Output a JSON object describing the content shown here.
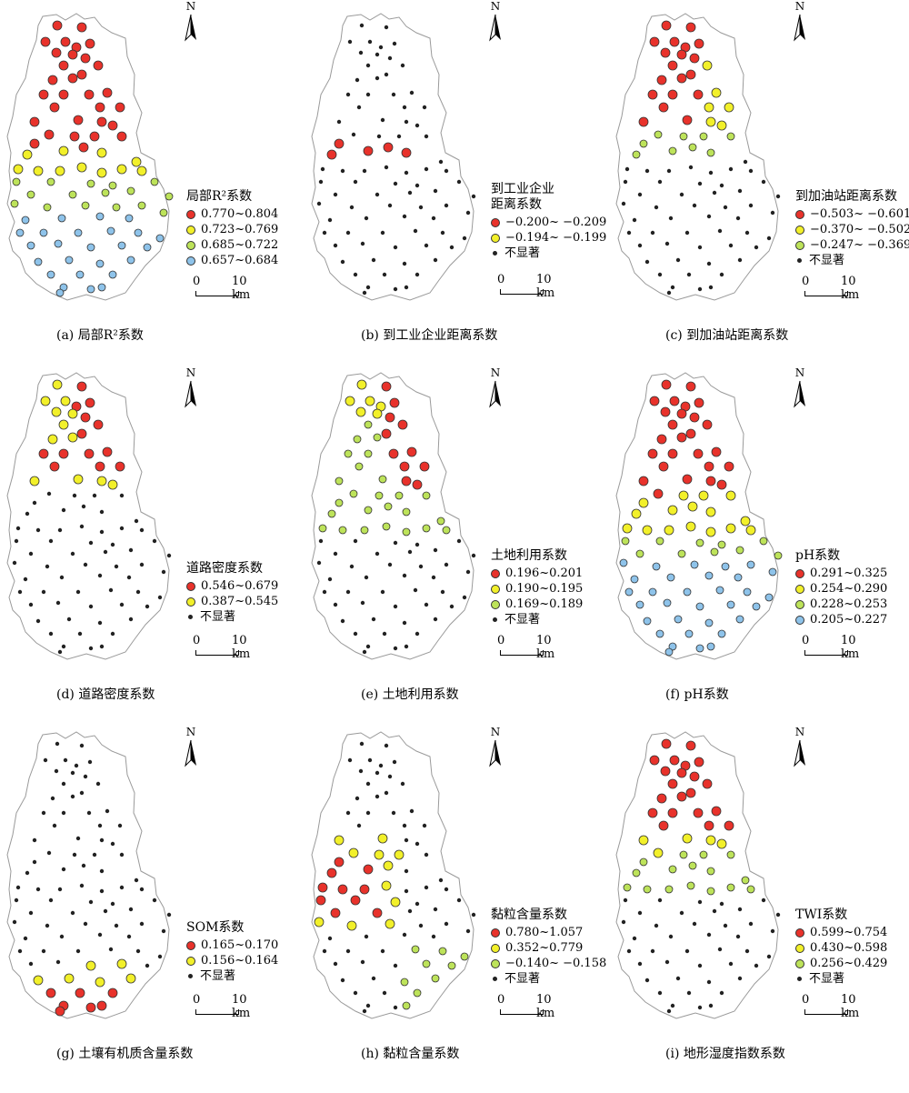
{
  "colors": {
    "red": "#e8322b",
    "yellow": "#f2f02a",
    "green": "#bde35a",
    "blue": "#8ec3ea",
    "black": "#222222",
    "outline": "#9a9a9a"
  },
  "scale": {
    "zero": "0",
    "label": "10 km"
  },
  "north_label": "N",
  "panels": [
    {
      "id": "a",
      "caption": "(a) 局部R²系数",
      "legend_title": "局部R²系数",
      "classes": [
        {
          "label": "0.770~0.804",
          "color": "red"
        },
        {
          "label": "0.723~0.769",
          "color": "yellow"
        },
        {
          "label": "0.685~0.722",
          "color": "green"
        },
        {
          "label": "0.657~0.684",
          "color": "blue"
        }
      ]
    },
    {
      "id": "b",
      "caption": "(b) 到工业企业距离系数",
      "legend_title": "到工业企业\n距离系数",
      "classes": [
        {
          "label": "−0.200~ −0.209",
          "color": "red"
        },
        {
          "label": "−0.194~ −0.199",
          "color": "yellow"
        },
        {
          "label": "不显著",
          "color": "black"
        }
      ]
    },
    {
      "id": "c",
      "caption": "(c) 到加油站距离系数",
      "legend_title": "到加油站距离系数",
      "classes": [
        {
          "label": "−0.503~ −0.601",
          "color": "red"
        },
        {
          "label": "−0.370~ −0.502",
          "color": "yellow"
        },
        {
          "label": "−0.247~ −0.369",
          "color": "green"
        },
        {
          "label": "不显著",
          "color": "black"
        }
      ]
    },
    {
      "id": "d",
      "caption": "(d) 道路密度系数",
      "legend_title": "道路密度系数",
      "classes": [
        {
          "label": "0.546~0.679",
          "color": "red"
        },
        {
          "label": "0.387~0.545",
          "color": "yellow"
        },
        {
          "label": "不显著",
          "color": "black"
        }
      ]
    },
    {
      "id": "e",
      "caption": "(e) 土地利用系数",
      "legend_title": "土地利用系数",
      "classes": [
        {
          "label": "0.196~0.201",
          "color": "red"
        },
        {
          "label": "0.190~0.195",
          "color": "yellow"
        },
        {
          "label": "0.169~0.189",
          "color": "green"
        },
        {
          "label": "不显著",
          "color": "black"
        }
      ]
    },
    {
      "id": "f",
      "caption": "(f) pH系数",
      "legend_title": "pH系数",
      "classes": [
        {
          "label": "0.291~0.325",
          "color": "red"
        },
        {
          "label": "0.254~0.290",
          "color": "yellow"
        },
        {
          "label": "0.228~0.253",
          "color": "green"
        },
        {
          "label": "0.205~0.227",
          "color": "blue"
        }
      ]
    },
    {
      "id": "g",
      "caption": "(g) 土壤有机质含量系数",
      "legend_title": "SOM系数",
      "classes": [
        {
          "label": "0.165~0.170",
          "color": "red"
        },
        {
          "label": "0.156~0.164",
          "color": "yellow"
        },
        {
          "label": "不显著",
          "color": "black"
        }
      ]
    },
    {
      "id": "h",
      "caption": "(h) 黏粒含量系数",
      "legend_title": "黏粒含量系数",
      "classes": [
        {
          "label": "0.780~1.057",
          "color": "red"
        },
        {
          "label": "0.352~0.779",
          "color": "yellow"
        },
        {
          "label": "−0.140~ −0.158",
          "color": "green"
        },
        {
          "label": "不显著",
          "color": "black"
        }
      ]
    },
    {
      "id": "i",
      "caption": "(i) 地形湿度指数系数",
      "legend_title": "TWI系数",
      "classes": [
        {
          "label": "0.599~0.754",
          "color": "red"
        },
        {
          "label": "0.430~0.598",
          "color": "yellow"
        },
        {
          "label": "0.256~0.429",
          "color": "green"
        },
        {
          "label": "不显著",
          "color": "black"
        }
      ]
    }
  ]
}
